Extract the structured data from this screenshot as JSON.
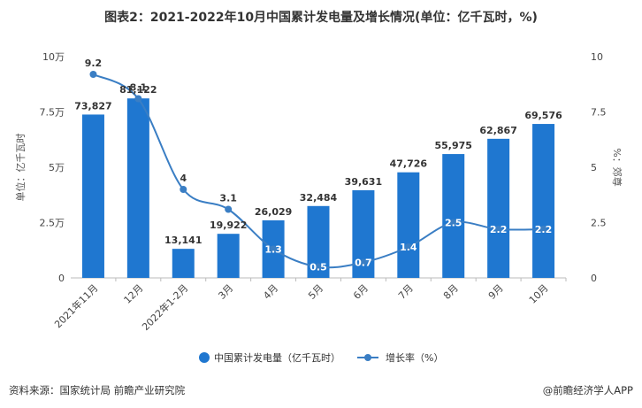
{
  "title": "图表2：2021-2022年10月中国累计发电量及增长情况(单位：亿千瓦时，%)",
  "footer": {
    "source": "资料来源：国家统计局 前瞻产业研究院",
    "brand": "@前瞻经济学人APP"
  },
  "colors": {
    "bar": "#1f77d0",
    "line": "#3a7ec4"
  },
  "chart_data": {
    "type": "bar",
    "categories": [
      "2021年11月",
      "12月",
      "2022年1-2月",
      "3月",
      "4月",
      "5月",
      "6月",
      "7月",
      "8月",
      "9月",
      "10月"
    ],
    "series": [
      {
        "name": "中国累计发电量（亿千瓦时）",
        "type": "bar",
        "axis": "left",
        "values": [
          73827,
          81122,
          13141,
          19922,
          26029,
          32484,
          39631,
          47726,
          55975,
          62867,
          69576
        ],
        "labels": [
          "73,827",
          "81,122",
          "13,141",
          "19,922",
          "26,029",
          "32,484",
          "39,631",
          "47,726",
          "55,975",
          "62,867",
          "69,576"
        ]
      },
      {
        "name": "增长率（%）",
        "type": "line",
        "axis": "right",
        "values": [
          9.2,
          8.1,
          4,
          3.1,
          1.3,
          0.5,
          0.7,
          1.4,
          2.5,
          2.2,
          2.2
        ],
        "labels": [
          "9.2",
          "8.1",
          "4",
          "3.1",
          "1.3",
          "0.5",
          "0.7",
          "1.4",
          "2.5",
          "2.2",
          "2.2"
        ]
      }
    ],
    "y_left": {
      "label": "单位：亿千瓦时",
      "range": [
        0,
        100000
      ],
      "ticks": [
        0,
        25000,
        50000,
        75000,
        100000
      ],
      "tick_labels": [
        "0",
        "2.5万",
        "5万",
        "7.5万",
        "10万"
      ]
    },
    "y_right": {
      "label": "%：郊尊",
      "range": [
        0,
        10
      ],
      "ticks": [
        0,
        2.5,
        5,
        7.5,
        10
      ],
      "tick_labels": [
        "0",
        "2.5",
        "5",
        "7.5",
        "10"
      ]
    },
    "grid": false,
    "legend_position": "bottom"
  }
}
